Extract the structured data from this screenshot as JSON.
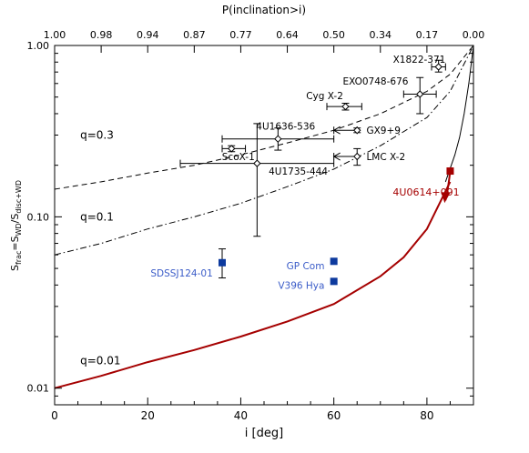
{
  "chart_data": {
    "type": "scatter",
    "xlabel": "i [deg]",
    "xlabel_top": "P(inclination>i)",
    "ylabel": {
      "main": "S",
      "sub1": "frac",
      "mid": "=S",
      "sub2": "WD",
      "sep": "/S",
      "sub3": "disc+WD"
    },
    "xlim": [
      0,
      90
    ],
    "ylim": [
      0.008,
      1.0
    ],
    "yscale": "log",
    "x_ticks": [
      0,
      20,
      40,
      60,
      80
    ],
    "x_tick_labels": [
      "0",
      "20",
      "40",
      "60",
      "80"
    ],
    "top_ticks": [
      0,
      10,
      20,
      30,
      40,
      50,
      60,
      70,
      80,
      90
    ],
    "top_tick_labels": [
      "1.00",
      "0.98",
      "0.94",
      "0.87",
      "0.77",
      "0.64",
      "0.50",
      "0.34",
      "0.17",
      "0.00"
    ],
    "y_ticks": [
      0.01,
      0.1,
      1.0
    ],
    "y_tick_labels": [
      "0.01",
      "0.10",
      "1.00"
    ],
    "curves": [
      {
        "label": "q=0.3",
        "style": "dashed",
        "color": "#000000",
        "x": [
          0,
          10,
          20,
          30,
          40,
          50,
          60,
          70,
          80,
          85,
          90
        ],
        "y": [
          0.145,
          0.16,
          0.18,
          0.2,
          0.23,
          0.27,
          0.32,
          0.4,
          0.54,
          0.68,
          1.0
        ]
      },
      {
        "label": "q=0.1",
        "style": "dashdot",
        "color": "#000000",
        "x": [
          0,
          10,
          20,
          30,
          40,
          50,
          60,
          70,
          80,
          85,
          90
        ],
        "y": [
          0.06,
          0.07,
          0.085,
          0.1,
          0.12,
          0.15,
          0.19,
          0.26,
          0.38,
          0.54,
          1.0
        ]
      },
      {
        "label": "q=0.01",
        "style": "solid",
        "color": "#ffffff",
        "x": [
          84,
          86,
          87,
          88,
          89,
          90
        ],
        "y": [
          0.16,
          0.23,
          0.29,
          0.4,
          0.6,
          1.0
        ]
      },
      {
        "label": "",
        "style": "solid-thick",
        "color": "#a50000",
        "x": [
          0,
          10,
          20,
          30,
          40,
          50,
          60,
          70,
          75,
          80,
          85
        ],
        "y": [
          0.01,
          0.0118,
          0.0142,
          0.0167,
          0.02,
          0.0245,
          0.031,
          0.045,
          0.058,
          0.085,
          0.16
        ]
      }
    ],
    "curve_labels": [
      {
        "text": "q=0.3",
        "x": 5.5,
        "y": 0.3
      },
      {
        "text": "q=0.1",
        "x": 5.5,
        "y": 0.1
      },
      {
        "text": "q=0.01",
        "x": 5.5,
        "y": 0.0145
      }
    ],
    "points_black": [
      {
        "name": "X1822-371",
        "x": 82.5,
        "y": 0.75,
        "xerr": [
          81,
          84
        ],
        "yerr": [
          0.7,
          0.82
        ],
        "lx": 84,
        "ly": 0.83,
        "anchor": "end"
      },
      {
        "name": "EXO0748-676",
        "x": 78.5,
        "y": 0.52,
        "xerr": [
          75,
          82
        ],
        "yerr": [
          0.4,
          0.65
        ],
        "lx": 76,
        "ly": 0.62,
        "anchor": "end"
      },
      {
        "name": "Cyg X-2",
        "x": 62.5,
        "y": 0.44,
        "xerr": [
          58.5,
          66
        ],
        "yerr": [
          0.42,
          0.46
        ],
        "lx": 62,
        "ly": 0.51,
        "anchor": "end"
      },
      {
        "name": "GX9+9",
        "x": 65,
        "y": 0.32,
        "xerr": [
          60,
          65
        ],
        "yerr": [
          0.31,
          0.33
        ],
        "lx": 67,
        "ly": 0.32,
        "anchor": "start",
        "left_arrow": true
      },
      {
        "name": "4U1636-536",
        "x": 48,
        "y": 0.285,
        "xerr": [
          36,
          60
        ],
        "yerr": [
          0.245,
          0.33
        ],
        "lx": 56,
        "ly": 0.34,
        "anchor": "end"
      },
      {
        "name": "ScoX-1",
        "x": 38,
        "y": 0.25,
        "xerr": [
          36,
          41
        ],
        "yerr": [
          0.24,
          0.26
        ],
        "lx": 43,
        "ly": 0.225,
        "anchor": "end"
      },
      {
        "name": "4U1735-444",
        "x": 43.5,
        "y": 0.205,
        "xerr": [
          27,
          60
        ],
        "yerr": [
          0.077,
          0.35
        ],
        "lx": 46,
        "ly": 0.185,
        "anchor": "start"
      },
      {
        "name": "LMC X-2",
        "x": 65,
        "y": 0.225,
        "xerr": [
          60,
          65
        ],
        "yerr": [
          0.2,
          0.25
        ],
        "lx": 67,
        "ly": 0.225,
        "anchor": "start",
        "left_arrow": true
      }
    ],
    "points_blue": [
      {
        "name": "SDSSJ124-01",
        "x": 36,
        "y": 0.054,
        "yerr": [
          0.044,
          0.065
        ],
        "lx": 34,
        "ly": 0.047,
        "anchor": "end"
      },
      {
        "name": "GP Com",
        "x": 60,
        "y": 0.055,
        "lx": 58,
        "ly": 0.052,
        "anchor": "end"
      },
      {
        "name": "V396 Hya",
        "x": 60,
        "y": 0.042,
        "lx": 58,
        "ly": 0.04,
        "anchor": "end"
      }
    ],
    "point_red": {
      "name": "4U0614+091",
      "x": 85,
      "y": 0.185,
      "lx": 87,
      "ly": 0.14,
      "anchor": "end"
    },
    "colors": {
      "red": "#a50000",
      "blue": "#0d3a9e",
      "blue_label": "#3b5cc8",
      "black": "#000000"
    }
  }
}
